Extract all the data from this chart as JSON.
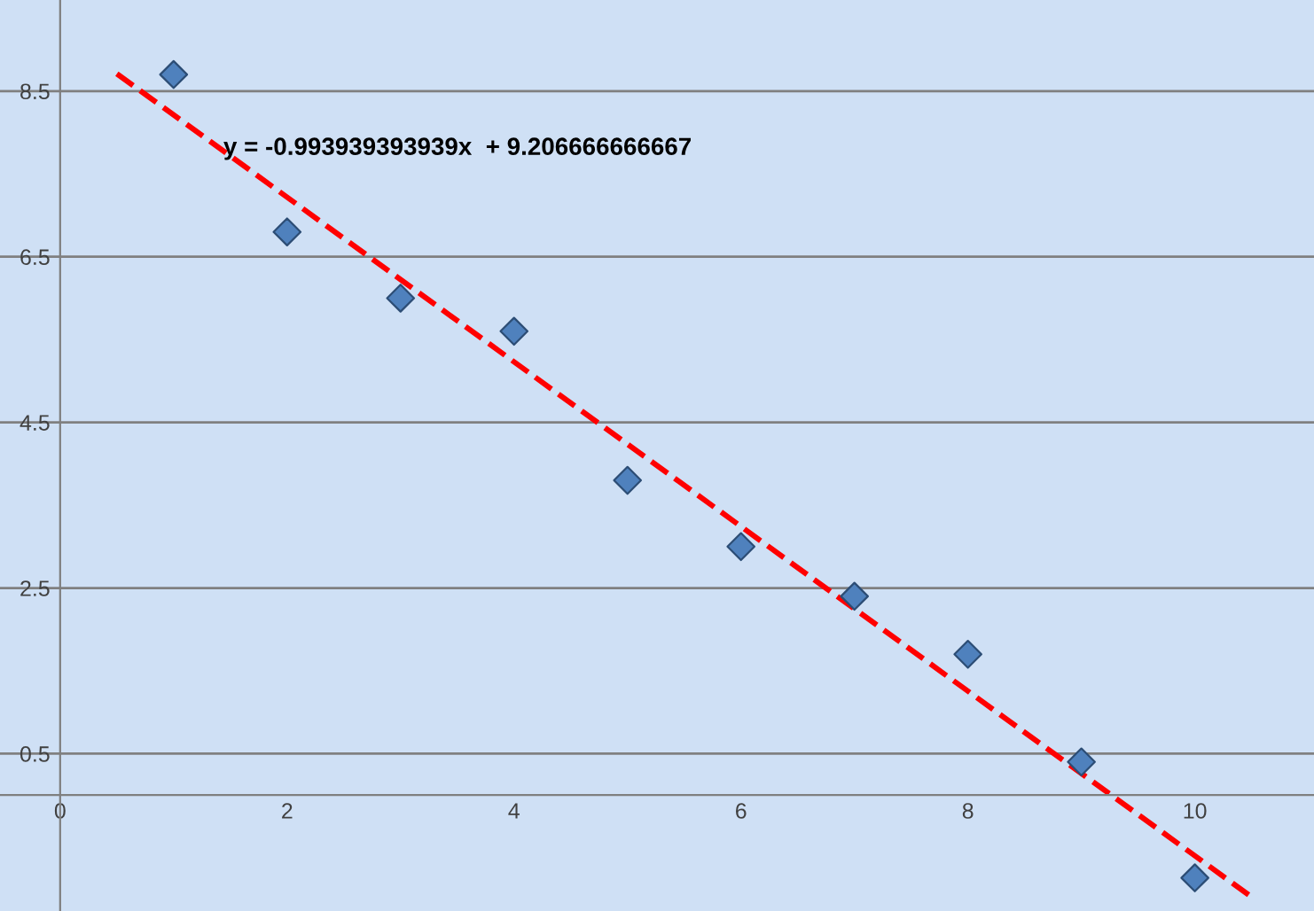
{
  "chart_data": {
    "type": "scatter",
    "x": [
      1,
      2,
      3,
      4,
      5,
      6,
      7,
      8,
      9,
      10
    ],
    "series": [
      {
        "color": "#4f81bd",
        "marker": "diamond",
        "values": [
          8.7,
          6.8,
          6.0,
          5.6,
          3.8,
          3.0,
          2.4,
          1.7,
          0.4,
          -1.0
        ]
      },
      {
        "type": "line",
        "color": "#ff0000",
        "line_style": "dashed",
        "marker": "none",
        "x": [
          0.5,
          10.5
        ],
        "values": [
          8.71,
          -1.23
        ]
      }
    ],
    "annotations": [
      "y = -0.993939393939x  + 9.206666666667"
    ],
    "xlim": [
      -0.53,
      11.05
    ],
    "ylim": [
      -1.4,
      9.6
    ],
    "xticks": [
      0,
      2,
      4,
      6,
      8,
      10
    ],
    "yticks": [
      0.5,
      2.5,
      4.5,
      6.5,
      8.5
    ],
    "grid": "y"
  }
}
